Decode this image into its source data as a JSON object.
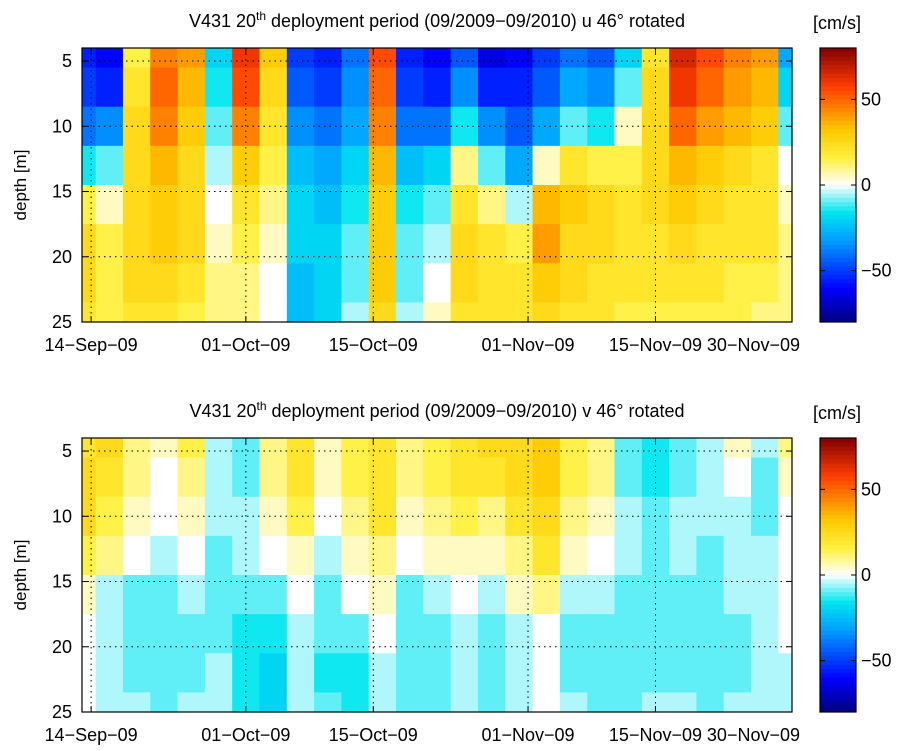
{
  "chart_data": [
    {
      "type": "heatmap",
      "title": "V431 20th deployment period (09/2009-09/2010) u 46° rotated",
      "title_parts": [
        "V431 20",
        "th",
        " deployment period (09/2009−09/2010) u 46° rotated"
      ],
      "ylabel": "depth [m]",
      "colorbar_label": "[cm/s]",
      "colormap": "jet-white-center",
      "clim": [
        -80,
        80
      ],
      "colorbar_ticks": [
        "50",
        "0",
        "−50"
      ],
      "colorbar_tick_values": [
        50,
        0,
        -50
      ],
      "x_range": [
        "2009-09-13",
        "2009-11-30"
      ],
      "x_ticks": [
        "14−Sep−09",
        "01−Oct−09",
        "15−Oct−09",
        "01−Nov−09",
        "15−Nov−09",
        "30−Nov−09"
      ],
      "x_tick_dates": [
        "2009-09-14",
        "2009-10-01",
        "2009-10-15",
        "2009-11-01",
        "2009-11-15",
        "2009-11-30"
      ],
      "y_range": [
        4,
        25
      ],
      "y_reversed": true,
      "y_ticks": [
        "5",
        "10",
        "15",
        "20",
        "25"
      ],
      "y_tick_values": [
        5,
        10,
        15,
        20,
        25
      ],
      "grid": true,
      "depths": [
        4,
        7,
        10,
        13,
        16,
        19,
        22,
        25
      ],
      "times": [
        "2009-09-13",
        "2009-09-16",
        "2009-09-19",
        "2009-09-22",
        "2009-09-25",
        "2009-09-28",
        "2009-10-01",
        "2009-10-04",
        "2009-10-07",
        "2009-10-10",
        "2009-10-13",
        "2009-10-16",
        "2009-10-19",
        "2009-10-22",
        "2009-10-25",
        "2009-10-28",
        "2009-10-31",
        "2009-11-03",
        "2009-11-06",
        "2009-11-09",
        "2009-11-12",
        "2009-11-15",
        "2009-11-18",
        "2009-11-21",
        "2009-11-24",
        "2009-11-27",
        "2009-11-30"
      ],
      "values": [
        [
          -55,
          -60,
          15,
          45,
          40,
          -20,
          60,
          30,
          -50,
          -55,
          -40,
          55,
          -55,
          -60,
          -45,
          -65,
          -60,
          -50,
          -40,
          -45,
          -20,
          20,
          65,
          55,
          45,
          40,
          -30
        ],
        [
          -50,
          -55,
          20,
          50,
          35,
          -15,
          55,
          25,
          -45,
          -50,
          -35,
          50,
          -50,
          -55,
          -35,
          -55,
          -55,
          -45,
          -30,
          -35,
          -10,
          25,
          60,
          50,
          40,
          35,
          -20
        ],
        [
          -40,
          -35,
          25,
          45,
          30,
          -10,
          45,
          20,
          -35,
          -40,
          -30,
          45,
          -40,
          -40,
          -15,
          -35,
          -45,
          -30,
          -10,
          -15,
          5,
          25,
          50,
          40,
          35,
          30,
          -10
        ],
        [
          -15,
          -10,
          25,
          35,
          25,
          -5,
          30,
          15,
          -25,
          -30,
          -20,
          35,
          -25,
          -20,
          10,
          -10,
          -30,
          5,
          20,
          15,
          15,
          25,
          35,
          30,
          25,
          20,
          0
        ],
        [
          15,
          5,
          25,
          30,
          25,
          0,
          20,
          10,
          -20,
          -25,
          -15,
          30,
          -15,
          -10,
          20,
          10,
          -5,
          35,
          30,
          25,
          20,
          25,
          30,
          25,
          20,
          20,
          5
        ],
        [
          25,
          15,
          25,
          30,
          25,
          5,
          15,
          5,
          -20,
          -20,
          -10,
          30,
          -10,
          -5,
          25,
          20,
          15,
          40,
          25,
          25,
          20,
          20,
          25,
          20,
          20,
          20,
          10
        ],
        [
          25,
          15,
          25,
          25,
          20,
          10,
          10,
          0,
          -25,
          -20,
          -10,
          30,
          -10,
          0,
          25,
          20,
          20,
          30,
          25,
          20,
          20,
          20,
          20,
          20,
          15,
          15,
          10
        ],
        [
          20,
          15,
          20,
          20,
          15,
          10,
          10,
          0,
          -25,
          -20,
          -5,
          25,
          -5,
          5,
          20,
          20,
          20,
          25,
          20,
          20,
          15,
          15,
          15,
          15,
          15,
          10,
          10
        ]
      ]
    },
    {
      "type": "heatmap",
      "title": "V431 20th deployment period (09/2009-09/2010) v 46° rotated",
      "title_parts": [
        "V431 20",
        "th",
        " deployment period (09/2009−09/2010) v 46° rotated"
      ],
      "ylabel": "depth [m]",
      "colorbar_label": "[cm/s]",
      "colormap": "jet-white-center",
      "clim": [
        -80,
        80
      ],
      "colorbar_ticks": [
        "50",
        "0",
        "−50"
      ],
      "colorbar_tick_values": [
        50,
        0,
        -50
      ],
      "x_range": [
        "2009-09-13",
        "2009-11-30"
      ],
      "x_ticks": [
        "14−Sep−09",
        "01−Oct−09",
        "15−Oct−09",
        "01−Nov−09",
        "15−Nov−09",
        "30−Nov−09"
      ],
      "x_tick_dates": [
        "2009-09-14",
        "2009-10-01",
        "2009-10-15",
        "2009-11-01",
        "2009-11-15",
        "2009-11-30"
      ],
      "y_range": [
        4,
        25
      ],
      "y_reversed": true,
      "y_ticks": [
        "5",
        "10",
        "15",
        "20",
        "25"
      ],
      "y_tick_values": [
        5,
        10,
        15,
        20,
        25
      ],
      "grid": true,
      "depths": [
        4,
        7,
        10,
        13,
        16,
        19,
        22,
        25
      ],
      "times": [
        "2009-09-13",
        "2009-09-16",
        "2009-09-19",
        "2009-09-22",
        "2009-09-25",
        "2009-09-28",
        "2009-10-01",
        "2009-10-04",
        "2009-10-07",
        "2009-10-10",
        "2009-10-13",
        "2009-10-16",
        "2009-10-19",
        "2009-10-22",
        "2009-10-25",
        "2009-10-28",
        "2009-10-31",
        "2009-11-03",
        "2009-11-06",
        "2009-11-09",
        "2009-11-12",
        "2009-11-15",
        "2009-11-18",
        "2009-11-21",
        "2009-11-24",
        "2009-11-27",
        "2009-11-30"
      ],
      "values": [
        [
          20,
          25,
          10,
          5,
          15,
          -5,
          -10,
          10,
          20,
          5,
          15,
          20,
          10,
          15,
          20,
          25,
          25,
          30,
          15,
          10,
          -10,
          -15,
          -10,
          -5,
          5,
          -5,
          10
        ],
        [
          25,
          20,
          10,
          0,
          10,
          -5,
          -10,
          10,
          20,
          5,
          15,
          20,
          10,
          15,
          20,
          20,
          25,
          30,
          15,
          10,
          -10,
          -15,
          -10,
          -5,
          0,
          -10,
          5
        ],
        [
          25,
          15,
          5,
          0,
          5,
          -5,
          -5,
          5,
          15,
          0,
          10,
          20,
          5,
          10,
          15,
          10,
          20,
          25,
          10,
          5,
          -5,
          -10,
          -5,
          -5,
          -5,
          -10,
          0
        ],
        [
          15,
          10,
          0,
          -5,
          0,
          -10,
          -5,
          0,
          5,
          -5,
          5,
          10,
          0,
          5,
          5,
          5,
          10,
          20,
          5,
          0,
          -5,
          -10,
          -5,
          -10,
          -5,
          -5,
          0
        ],
        [
          5,
          -5,
          -10,
          -10,
          -5,
          -10,
          -10,
          -10,
          0,
          -10,
          0,
          5,
          -10,
          -5,
          0,
          -5,
          5,
          10,
          -5,
          -5,
          -10,
          -10,
          -10,
          -10,
          -5,
          -5,
          0
        ],
        [
          0,
          -5,
          -10,
          -10,
          -10,
          -10,
          -15,
          -15,
          -5,
          -10,
          -10,
          0,
          -10,
          -10,
          -5,
          -10,
          -5,
          0,
          -10,
          -10,
          -10,
          -10,
          -10,
          -10,
          -10,
          -5,
          0
        ],
        [
          0,
          -5,
          -10,
          -10,
          -10,
          -5,
          -15,
          -20,
          -5,
          -15,
          -15,
          -5,
          -10,
          -10,
          -5,
          -10,
          -5,
          0,
          -10,
          -10,
          -10,
          -10,
          -10,
          -10,
          -10,
          -5,
          -5
        ],
        [
          0,
          -5,
          -5,
          -10,
          -5,
          -5,
          -15,
          -20,
          -5,
          -10,
          -15,
          -5,
          -10,
          -10,
          -5,
          -10,
          -5,
          0,
          -5,
          -10,
          -10,
          -5,
          -5,
          -10,
          -5,
          -5,
          -5
        ]
      ]
    }
  ]
}
